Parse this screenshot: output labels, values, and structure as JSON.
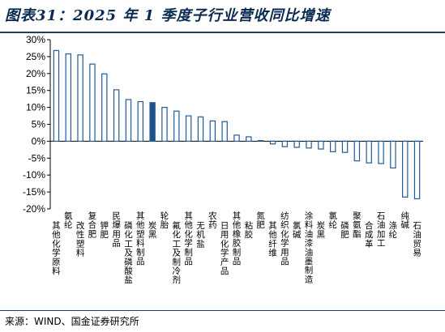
{
  "title": "图表31：2025 年 1 季度子行业营收同比增速",
  "source": "来源：WIND、国金证券研究所",
  "colors": {
    "bar_outline": "#1f5b99",
    "bar_highlight": "#1f4f86",
    "title": "#0b2a52",
    "axis": "#000000"
  },
  "chart_data": {
    "type": "bar",
    "title": "",
    "xlabel": "",
    "ylabel": "",
    "ylim": [
      -20,
      30
    ],
    "yticks": [
      -20,
      -15,
      -10,
      -5,
      0,
      5,
      10,
      15,
      20,
      25,
      30
    ],
    "ytick_labels": [
      "-20%",
      "-15%",
      "-10%",
      "-5%",
      "0%",
      "5%",
      "10%",
      "15%",
      "20%",
      "25%",
      "30%"
    ],
    "grid": false,
    "legend": "none",
    "highlight_index": 8,
    "categories": [
      "其他化学原料",
      "氨纶",
      "改性塑料",
      "复合肥",
      "钾肥",
      "民爆用品",
      "磷化工及磷酸盐",
      "其他塑料制品",
      "炭黑",
      "轮胎",
      "氟化工及制冷剂",
      "其他化学制品",
      "无机盐",
      "农药",
      "日用化学产品",
      "其他橡胶制品",
      "粘胶",
      "氮肥",
      "其他纤维",
      "纺织化学用品",
      "氯碱",
      "涂料油漆油墨制造",
      "炭黑2",
      "氯纶",
      "磷肥",
      "聚氨酯",
      "合成革",
      "石油加工",
      "涤纶",
      "纯碱",
      "石油贸易"
    ],
    "display_labels": [
      "其他化学原料",
      "氨纶",
      "改性塑料",
      "复合肥",
      "钾肥",
      "民爆用品",
      "磷化工及磷酸盐",
      "其他塑料制品",
      "炭黑",
      "轮胎",
      "氟化工及制冷剂",
      "其他化学制品",
      "无机盐",
      "农药",
      "日用化学产品",
      "其他橡胶制品",
      "粘胶",
      "氮肥",
      "其他纤维",
      "纺织化学用品",
      "氯碱",
      "涂料油漆油墨制造",
      "炭黑",
      "氯纶",
      "磷肥",
      "聚氨酯",
      "合成革",
      "石油加工",
      "涤纶",
      "纯碱",
      "石油贸易"
    ],
    "values": [
      26.8,
      25.8,
      25.5,
      22.8,
      19.9,
      15.2,
      12.3,
      11.7,
      11.4,
      10.0,
      8.9,
      7.5,
      7.2,
      6.0,
      5.8,
      1.8,
      1.3,
      0.2,
      -0.8,
      -1.6,
      -1.8,
      -2.0,
      -2.3,
      -3.1,
      -3.3,
      -5.8,
      -6.4,
      -6.6,
      -7.9,
      -16.5,
      -17.0
    ]
  }
}
